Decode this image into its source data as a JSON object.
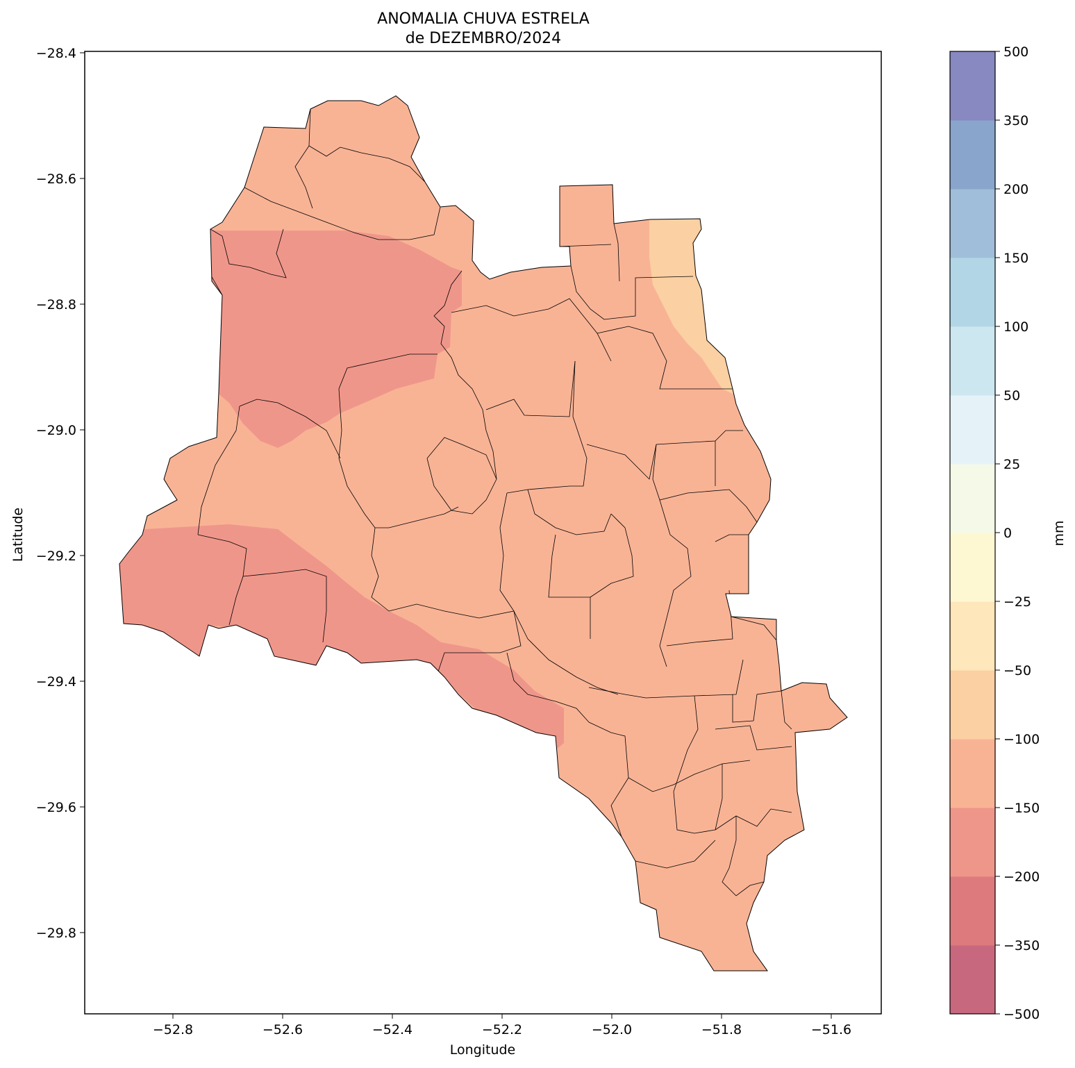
{
  "title_line1": "ANOMALIA CHUVA ESTRELA",
  "title_line2": "de DEZEMBRO/2024",
  "chart_data": {
    "type": "heatmap",
    "title": "ANOMALIA CHUVA ESTRELA de DEZEMBRO/2024",
    "xlabel": "Longitude",
    "ylabel": "Latitude",
    "xlim": [
      -52.96,
      -51.51
    ],
    "ylim": [
      -29.92,
      -28.4
    ],
    "x_ticks": [
      -52.8,
      -52.6,
      -52.4,
      -52.2,
      -52.0,
      -51.8,
      -51.6
    ],
    "x_tick_labels": [
      "−52.8",
      "−52.6",
      "−52.4",
      "−52.2",
      "−52.0",
      "−51.8",
      "−51.6"
    ],
    "y_ticks": [
      -28.4,
      -28.6,
      -28.8,
      -29.0,
      -29.2,
      -29.4,
      -29.6,
      -29.8
    ],
    "y_tick_labels": [
      "−28.4",
      "−28.6",
      "−28.8",
      "−29.0",
      "−29.2",
      "−29.4",
      "−29.6",
      "−29.8"
    ],
    "colorbar": {
      "label": "mm",
      "levels": [
        -500,
        -350,
        -200,
        -150,
        -100,
        -50,
        -25,
        0,
        25,
        50,
        100,
        150,
        200,
        350,
        500
      ],
      "level_labels": [
        "−500",
        "−350",
        "−200",
        "−150",
        "−100",
        "−50",
        "−25",
        "0",
        "25",
        "50",
        "100",
        "150",
        "200",
        "350",
        "500"
      ],
      "colors": [
        "#c8687f",
        "#dc7a7d",
        "#ef968a",
        "#f8b395",
        "#fbd0a2",
        "#fde7bb",
        "#fef8d2",
        "#f4f9e8",
        "#e5f3f8",
        "#cce7f0",
        "#b3d6e6",
        "#a0bed9",
        "#8aa5cb",
        "#8889c0"
      ]
    },
    "regions": [
      {
        "range": "-150 to -100",
        "description_area": "most of the region"
      },
      {
        "range": "-200 to -150",
        "description_area": "western and south-western parts"
      },
      {
        "range": "-100 to -50",
        "description_area": "north-eastern edge"
      }
    ]
  }
}
